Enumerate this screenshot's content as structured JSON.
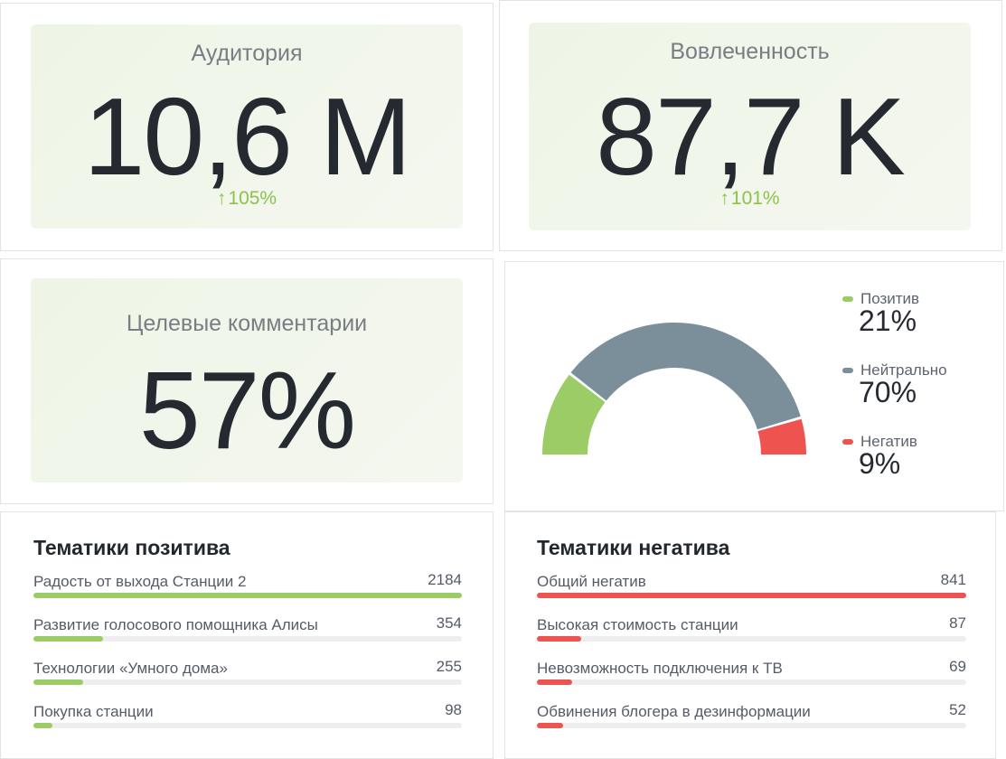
{
  "kpis": {
    "audience": {
      "title": "Аудитория",
      "value": "10,6 M",
      "delta": "105%"
    },
    "engagement": {
      "title": "Вовлеченность",
      "value": "87,7 K",
      "delta": "101%"
    },
    "target_comments": {
      "title": "Целевые комментарии",
      "value": "57%"
    }
  },
  "sentiment": {
    "items": [
      {
        "label": "Позитив",
        "value": "21%",
        "color": "#9ccc65"
      },
      {
        "label": "Нейтрально",
        "value": "70%",
        "color": "#7a8f9a"
      },
      {
        "label": "Негатив",
        "value": "9%",
        "color": "#ef5350"
      }
    ]
  },
  "chart_data": {
    "type": "pie",
    "categories": [
      "Позитив",
      "Нейтрально",
      "Негатив"
    ],
    "values": [
      21,
      70,
      9
    ]
  },
  "positive_topics": {
    "title": "Тематики позитива",
    "color": "#9ccc65",
    "max": 2184,
    "rows": [
      {
        "label": "Радость от выхода Станции 2",
        "value": "2184",
        "n": 2184
      },
      {
        "label": "Развитие голосового помощника Алисы",
        "value": "354",
        "n": 354
      },
      {
        "label": "Технологии «Умного дома»",
        "value": "255",
        "n": 255
      },
      {
        "label": "Покупка станции",
        "value": "98",
        "n": 98
      }
    ]
  },
  "negative_topics": {
    "title": "Тематики негатива",
    "color": "#ef5350",
    "max": 841,
    "rows": [
      {
        "label": "Общий негатив",
        "value": "841",
        "n": 841
      },
      {
        "label": "Высокая стоимость станции",
        "value": "87",
        "n": 87
      },
      {
        "label": "Невозможность подключения к ТВ",
        "value": "69",
        "n": 69
      },
      {
        "label": "Обвинения блогера в дезинформации",
        "value": "52",
        "n": 52
      }
    ]
  }
}
